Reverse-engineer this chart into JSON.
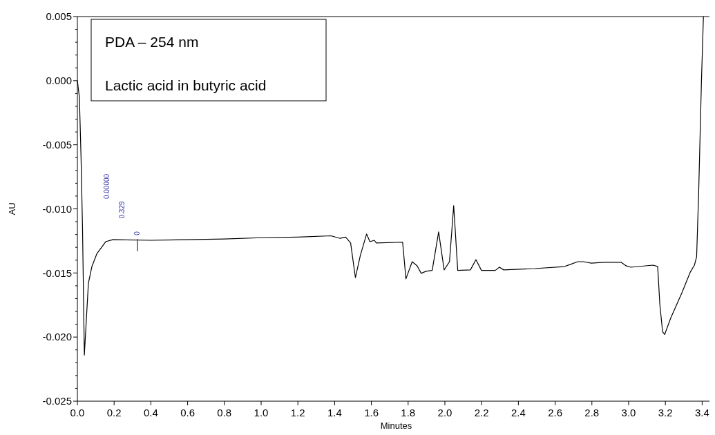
{
  "chart_data": {
    "type": "line",
    "title": "PDA – 254 nm",
    "subtitle": "Lactic acid in butyric acid",
    "xlabel": "Minutes",
    "ylabel": "AU",
    "x": [
      0,
      0.011,
      0.02,
      0.028,
      0.038,
      0.06,
      0.079,
      0.106,
      0.132,
      0.154,
      0.192,
      0.4,
      0.6,
      0.8,
      1.0,
      1.2,
      1.38,
      1.43,
      1.46,
      1.487,
      1.513,
      1.54,
      1.574,
      1.592,
      1.616,
      1.627,
      1.77,
      1.788,
      1.822,
      1.849,
      1.871,
      1.897,
      1.931,
      1.966,
      1.996,
      2.025,
      2.048,
      2.07,
      2.139,
      2.169,
      2.199,
      2.274,
      2.297,
      2.32,
      2.488,
      2.65,
      2.684,
      2.722,
      2.755,
      2.797,
      2.865,
      2.96,
      2.986,
      3.012,
      3.132,
      3.158,
      3.17,
      3.185,
      3.196,
      3.23,
      3.29,
      3.336,
      3.358,
      3.37,
      3.381,
      3.396,
      3.407
    ],
    "series": [
      {
        "color": "#000000",
        "values": [
          0.0,
          -0.0013,
          -0.006,
          -0.0115,
          -0.0214,
          -0.0158,
          -0.0145,
          -0.0135,
          -0.013,
          -0.01256,
          -0.0124,
          -0.01245,
          -0.0124,
          -0.01235,
          -0.01225,
          -0.0122,
          -0.0121,
          -0.0123,
          -0.0122,
          -0.01266,
          -0.01536,
          -0.01363,
          -0.01196,
          -0.01256,
          -0.01245,
          -0.01266,
          -0.0126,
          -0.01546,
          -0.01412,
          -0.01444,
          -0.01503,
          -0.01487,
          -0.0148,
          -0.0118,
          -0.01476,
          -0.01412,
          -0.00975,
          -0.0148,
          -0.01476,
          -0.01396,
          -0.0148,
          -0.0148,
          -0.01455,
          -0.01476,
          -0.01466,
          -0.0145,
          -0.01433,
          -0.01412,
          -0.01412,
          -0.01423,
          -0.01417,
          -0.01417,
          -0.01444,
          -0.01455,
          -0.01439,
          -0.01449,
          -0.0175,
          -0.0196,
          -0.0198,
          -0.01848,
          -0.01654,
          -0.01492,
          -0.01439,
          -0.01374,
          -0.00879,
          -0.00017,
          0.005
        ]
      }
    ],
    "xlim": [
      0,
      3.47
    ],
    "xticks": [
      {
        "value": 0,
        "label": "0.0"
      },
      {
        "value": 0.2,
        "label": "0.2"
      },
      {
        "value": 0.4,
        "label": "0.4"
      },
      {
        "value": 0.6,
        "label": "0.6"
      },
      {
        "value": 0.8,
        "label": "0.8"
      },
      {
        "value": 1,
        "label": "1.0"
      },
      {
        "value": 1.2,
        "label": "1.2"
      },
      {
        "value": 1.4,
        "label": "1.4"
      },
      {
        "value": 1.6,
        "label": "1.6"
      },
      {
        "value": 1.8,
        "label": "1.8"
      },
      {
        "value": 2,
        "label": "2.0"
      },
      {
        "value": 2.2,
        "label": "2.2"
      },
      {
        "value": 2.4,
        "label": "2.4"
      },
      {
        "value": 2.6,
        "label": "2.6"
      },
      {
        "value": 2.8,
        "label": "2.8"
      },
      {
        "value": 3,
        "label": "3.0"
      },
      {
        "value": 3.2,
        "label": "3.2"
      },
      {
        "value": 3.4,
        "label": "3.4"
      }
    ],
    "ylim": [
      -0.025,
      0.005
    ],
    "yticks": [
      {
        "value": -0.025,
        "label": "-0.025"
      },
      {
        "value": -0.024,
        "label": null
      },
      {
        "value": -0.023,
        "label": null
      },
      {
        "value": -0.022,
        "label": null
      },
      {
        "value": -0.021,
        "label": null
      },
      {
        "value": -0.02,
        "label": "-0.020"
      },
      {
        "value": -0.019,
        "label": null
      },
      {
        "value": -0.018,
        "label": null
      },
      {
        "value": -0.017,
        "label": null
      },
      {
        "value": -0.016,
        "label": null
      },
      {
        "value": -0.015,
        "label": "-0.015"
      },
      {
        "value": -0.014,
        "label": null
      },
      {
        "value": -0.013,
        "label": null
      },
      {
        "value": -0.012,
        "label": null
      },
      {
        "value": -0.011,
        "label": null
      },
      {
        "value": -0.01,
        "label": "-0.010"
      },
      {
        "value": -0.009,
        "label": null
      },
      {
        "value": -0.008,
        "label": null
      },
      {
        "value": -0.007,
        "label": null
      },
      {
        "value": -0.006,
        "label": null
      },
      {
        "value": -0.005,
        "label": "-0.005"
      },
      {
        "value": -0.004,
        "label": null
      },
      {
        "value": -0.003,
        "label": null
      },
      {
        "value": -0.002,
        "label": null
      },
      {
        "value": -0.001,
        "label": null
      },
      {
        "value": 0,
        "label": "0.000"
      },
      {
        "value": 0.001,
        "label": null
      },
      {
        "value": 0.002,
        "label": null
      },
      {
        "value": 0.003,
        "label": null
      },
      {
        "value": 0.004,
        "label": null
      },
      {
        "value": 0.005,
        "label": "0.005"
      }
    ],
    "annotations": [
      "0.00000",
      "0.329",
      "0"
    ],
    "grid": false,
    "marker": "none",
    "line_style": "solid"
  }
}
